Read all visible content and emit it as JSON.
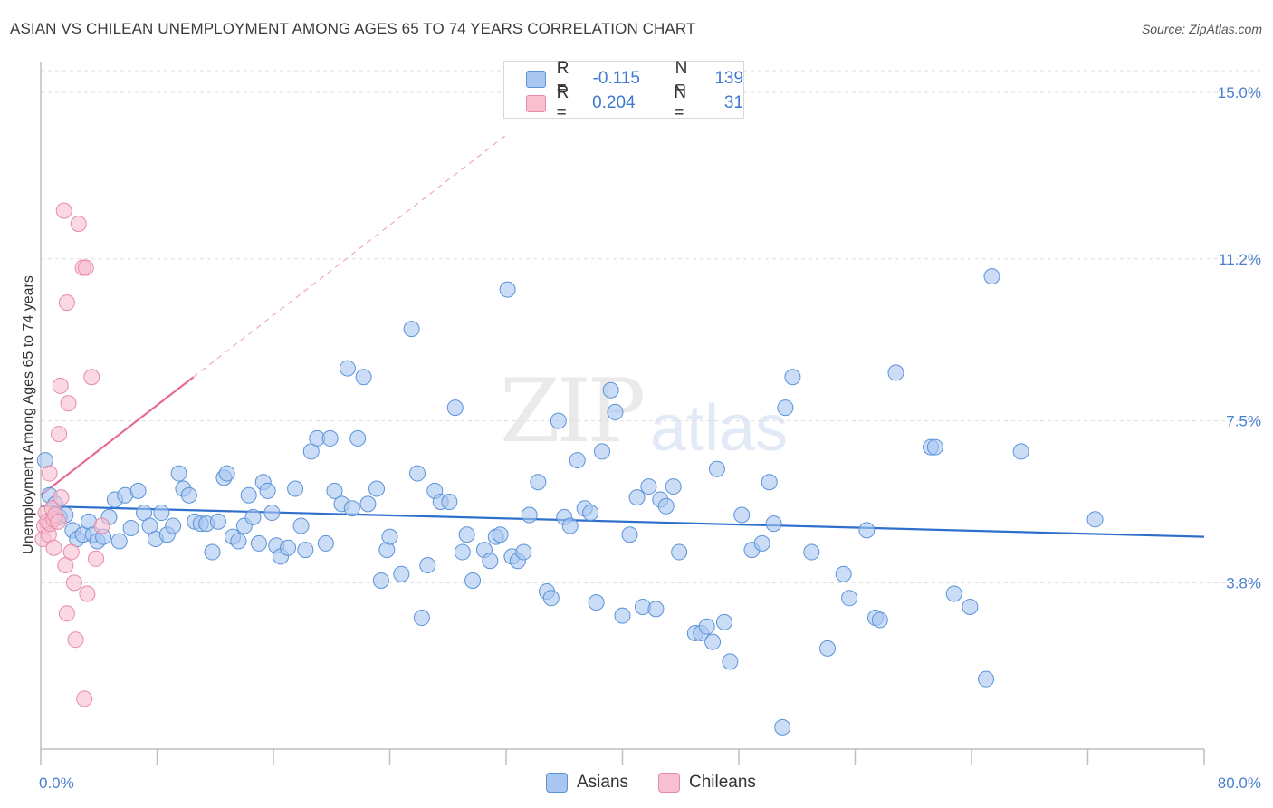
{
  "title": "ASIAN VS CHILEAN UNEMPLOYMENT AMONG AGES 65 TO 74 YEARS CORRELATION CHART",
  "source": "Source: ZipAtlas.com",
  "watermark": {
    "zip": "ZIP",
    "atlas": "atlas"
  },
  "legend": {
    "r_label": "R =",
    "n_label": "N =",
    "asians": {
      "r": "-0.115",
      "n": "139"
    },
    "chileans": {
      "r": "0.204",
      "n": "31"
    }
  },
  "colors": {
    "asians_fill": "#a8c6f0",
    "asians_stroke": "#5b93d8",
    "asians_line": "#2f6fcc",
    "chileans_fill": "#f7bfd0",
    "chileans_stroke": "#e98aa8",
    "chileans_line": "#e66b94",
    "grid": "#dddddd",
    "tick_label": "#4a7fd0"
  },
  "chart_data": {
    "type": "scatter",
    "title": "ASIAN VS CHILEAN UNEMPLOYMENT AMONG AGES 65 TO 74 YEARS CORRELATION CHART",
    "xlabel": "",
    "ylabel": "Unemployment Among Ages 65 to 74 years",
    "xlim": [
      0,
      80
    ],
    "ylim": [
      0,
      15.5
    ],
    "x_tick_labels": [
      "0.0%",
      "80.0%"
    ],
    "y_ticks": [
      3.8,
      7.5,
      11.2,
      15.0
    ],
    "y_tick_labels": [
      "3.8%",
      "7.5%",
      "11.2%",
      "15.0%"
    ],
    "grid": true,
    "legend_placement": "top-center",
    "series": [
      {
        "name": "Asians",
        "r": -0.115,
        "n": 139,
        "trend": {
          "x": [
            0,
            80
          ],
          "y": [
            5.55,
            4.85
          ]
        },
        "points": [
          [
            0.3,
            6.6
          ],
          [
            0.6,
            5.8
          ],
          [
            1.0,
            5.6
          ],
          [
            1.3,
            5.3
          ],
          [
            1.7,
            5.35
          ],
          [
            2.2,
            5.0
          ],
          [
            2.5,
            4.8
          ],
          [
            2.9,
            4.9
          ],
          [
            3.3,
            5.2
          ],
          [
            3.6,
            4.9
          ],
          [
            3.9,
            4.75
          ],
          [
            4.3,
            4.85
          ],
          [
            4.7,
            5.3
          ],
          [
            5.1,
            5.7
          ],
          [
            5.4,
            4.75
          ],
          [
            5.8,
            5.8
          ],
          [
            6.2,
            5.05
          ],
          [
            6.7,
            5.9
          ],
          [
            7.1,
            5.4
          ],
          [
            7.5,
            5.1
          ],
          [
            7.9,
            4.8
          ],
          [
            8.3,
            5.4
          ],
          [
            8.7,
            4.9
          ],
          [
            9.1,
            5.1
          ],
          [
            9.5,
            6.3
          ],
          [
            9.8,
            5.95
          ],
          [
            10.2,
            5.8
          ],
          [
            10.6,
            5.2
          ],
          [
            11.0,
            5.15
          ],
          [
            11.4,
            5.15
          ],
          [
            11.8,
            4.5
          ],
          [
            12.2,
            5.2
          ],
          [
            12.6,
            6.2
          ],
          [
            12.8,
            6.3
          ],
          [
            13.2,
            4.85
          ],
          [
            13.6,
            4.75
          ],
          [
            14.0,
            5.1
          ],
          [
            14.3,
            5.8
          ],
          [
            14.6,
            5.3
          ],
          [
            15.0,
            4.7
          ],
          [
            15.3,
            6.1
          ],
          [
            15.6,
            5.9
          ],
          [
            15.9,
            5.4
          ],
          [
            16.2,
            4.65
          ],
          [
            16.5,
            4.4
          ],
          [
            17.0,
            4.6
          ],
          [
            17.5,
            5.95
          ],
          [
            17.9,
            5.1
          ],
          [
            18.2,
            4.55
          ],
          [
            18.6,
            6.8
          ],
          [
            19.0,
            7.1
          ],
          [
            19.6,
            4.7
          ],
          [
            19.9,
            7.1
          ],
          [
            20.2,
            5.9
          ],
          [
            20.7,
            5.6
          ],
          [
            21.1,
            8.7
          ],
          [
            21.4,
            5.5
          ],
          [
            21.8,
            7.1
          ],
          [
            22.2,
            8.5
          ],
          [
            22.5,
            5.6
          ],
          [
            23.1,
            5.95
          ],
          [
            23.4,
            3.85
          ],
          [
            23.8,
            4.55
          ],
          [
            24.0,
            4.85
          ],
          [
            24.8,
            4.0
          ],
          [
            25.5,
            9.6
          ],
          [
            25.9,
            6.3
          ],
          [
            26.2,
            3.0
          ],
          [
            26.6,
            4.2
          ],
          [
            27.1,
            5.9
          ],
          [
            27.5,
            5.65
          ],
          [
            28.1,
            5.65
          ],
          [
            28.5,
            7.8
          ],
          [
            29.0,
            4.5
          ],
          [
            29.3,
            4.9
          ],
          [
            29.7,
            3.85
          ],
          [
            30.5,
            4.55
          ],
          [
            30.9,
            4.3
          ],
          [
            31.3,
            4.85
          ],
          [
            31.6,
            4.9
          ],
          [
            32.1,
            10.5
          ],
          [
            32.4,
            4.4
          ],
          [
            32.8,
            4.3
          ],
          [
            33.2,
            4.5
          ],
          [
            33.6,
            5.35
          ],
          [
            34.2,
            6.1
          ],
          [
            34.8,
            3.6
          ],
          [
            35.1,
            3.45
          ],
          [
            35.6,
            7.5
          ],
          [
            36.0,
            5.3
          ],
          [
            36.4,
            5.1
          ],
          [
            36.9,
            6.6
          ],
          [
            37.4,
            5.5
          ],
          [
            37.8,
            5.4
          ],
          [
            38.2,
            3.35
          ],
          [
            38.6,
            6.8
          ],
          [
            39.2,
            8.2
          ],
          [
            39.5,
            7.7
          ],
          [
            40.0,
            3.05
          ],
          [
            40.5,
            4.9
          ],
          [
            41.0,
            5.75
          ],
          [
            41.4,
            3.25
          ],
          [
            41.8,
            6.0
          ],
          [
            42.3,
            3.2
          ],
          [
            42.6,
            5.7
          ],
          [
            43.0,
            5.55
          ],
          [
            43.5,
            6.0
          ],
          [
            43.9,
            4.5
          ],
          [
            45.0,
            2.65
          ],
          [
            45.4,
            2.65
          ],
          [
            45.8,
            2.8
          ],
          [
            46.2,
            2.45
          ],
          [
            46.5,
            6.4
          ],
          [
            47.0,
            2.9
          ],
          [
            47.4,
            2.0
          ],
          [
            48.2,
            5.35
          ],
          [
            48.9,
            4.55
          ],
          [
            49.6,
            4.7
          ],
          [
            50.1,
            6.1
          ],
          [
            50.4,
            5.15
          ],
          [
            51.0,
            0.5
          ],
          [
            51.7,
            8.5
          ],
          [
            51.2,
            7.8
          ],
          [
            53.0,
            4.5
          ],
          [
            54.1,
            2.3
          ],
          [
            55.2,
            4.0
          ],
          [
            55.6,
            3.45
          ],
          [
            56.8,
            5.0
          ],
          [
            57.4,
            3.0
          ],
          [
            57.7,
            2.95
          ],
          [
            58.8,
            8.6
          ],
          [
            61.2,
            6.9
          ],
          [
            61.5,
            6.9
          ],
          [
            62.8,
            3.55
          ],
          [
            63.9,
            3.25
          ],
          [
            65.0,
            1.6
          ],
          [
            65.4,
            10.8
          ],
          [
            67.4,
            6.8
          ],
          [
            72.5,
            5.25
          ]
        ]
      },
      {
        "name": "Chileans",
        "r": 0.204,
        "n": 31,
        "trend": {
          "x": [
            0,
            10.5
          ],
          "y": [
            5.8,
            8.5
          ]
        },
        "points": [
          [
            0.15,
            4.8
          ],
          [
            0.25,
            5.1
          ],
          [
            0.35,
            5.4
          ],
          [
            0.45,
            5.2
          ],
          [
            0.55,
            4.9
          ],
          [
            0.65,
            5.15
          ],
          [
            0.8,
            5.5
          ],
          [
            0.9,
            5.25
          ],
          [
            1.0,
            5.35
          ],
          [
            1.2,
            5.2
          ],
          [
            1.4,
            5.75
          ],
          [
            0.6,
            6.3
          ],
          [
            0.9,
            4.6
          ],
          [
            1.25,
            7.2
          ],
          [
            1.35,
            8.3
          ],
          [
            1.6,
            12.3
          ],
          [
            1.7,
            4.2
          ],
          [
            1.8,
            10.2
          ],
          [
            1.9,
            7.9
          ],
          [
            2.1,
            4.5
          ],
          [
            2.3,
            3.8
          ],
          [
            2.6,
            12.0
          ],
          [
            2.9,
            11.0
          ],
          [
            3.1,
            11.0
          ],
          [
            3.2,
            3.55
          ],
          [
            3.5,
            8.5
          ],
          [
            3.8,
            4.35
          ],
          [
            4.2,
            5.1
          ],
          [
            1.8,
            3.1
          ],
          [
            2.4,
            2.5
          ],
          [
            3.0,
            1.15
          ]
        ]
      }
    ]
  }
}
